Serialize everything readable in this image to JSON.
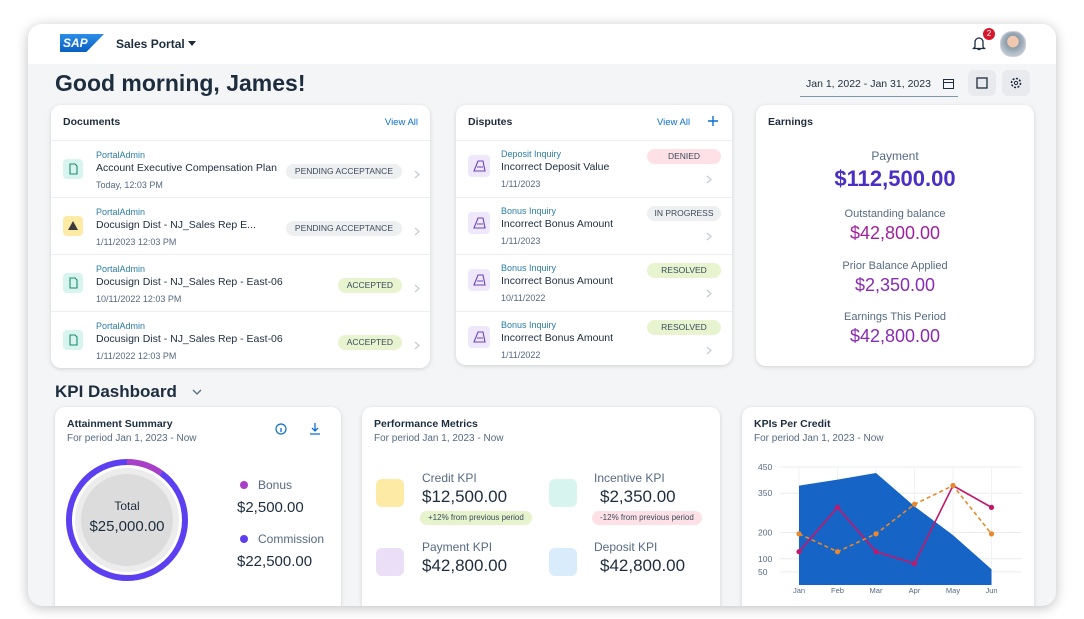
{
  "header": {
    "logo": "SAP",
    "app": "Sales Portal",
    "notifications": "2"
  },
  "greeting": "Good morning, James!",
  "date_range": "Jan 1, 2022 - Jan 31, 2023",
  "documents": {
    "title": "Documents",
    "view_all": "View All",
    "items": [
      {
        "author": "PortalAdmin",
        "title": "Account Executive Compensation Plan",
        "date": "Today, 12:03 PM",
        "status": "PENDING ACCEPTANCE",
        "status_color": "#eeeff1"
      },
      {
        "author": "PortalAdmin",
        "title": "Docusign Dist - NJ_Sales Rep E...",
        "date": "1/11/2023 12:03 PM",
        "status": "PENDING ACCEPTANCE",
        "status_color": "#eeeff1"
      },
      {
        "author": "PortalAdmin",
        "title": "Docusign Dist - NJ_Sales Rep - East-06",
        "date": "10/11/2022 12:03 PM",
        "status": "ACCEPTED",
        "status_color": "#e7f4cf"
      },
      {
        "author": "PortalAdmin",
        "title": "Docusign Dist - NJ_Sales Rep - East-06",
        "date": "1/11/2022 12:03 PM",
        "status": "ACCEPTED",
        "status_color": "#e7f4cf"
      }
    ]
  },
  "disputes": {
    "title": "Disputes",
    "view_all": "View All",
    "items": [
      {
        "type": "Deposit Inquiry",
        "title": "Incorrect Deposit Value",
        "date": "1/11/2023",
        "status": "DENIED",
        "status_color": "#fde1e7"
      },
      {
        "type": "Bonus Inquiry",
        "title": "Incorrect Bonus Amount",
        "date": "1/11/2023",
        "status": "IN PROGRESS",
        "status_color": "#eeeff1"
      },
      {
        "type": "Bonus Inquiry",
        "title": "Incorrect Bonus Amount",
        "date": "10/11/2022",
        "status": "RESOLVED",
        "status_color": "#e7f4cf"
      },
      {
        "type": "Bonus Inquiry",
        "title": "Incorrect Bonus Amount",
        "date": "1/11/2022",
        "status": "RESOLVED",
        "status_color": "#e7f4cf"
      }
    ]
  },
  "earnings": {
    "title": "Earnings",
    "items": [
      {
        "label": "Payment",
        "value": "$112,500.00",
        "color": "#4a2fc4"
      },
      {
        "label": "Outstanding balance",
        "value": "$42,800.00",
        "color": "#a01f9f"
      },
      {
        "label": "Prior Balance Applied",
        "value": "$2,350.00",
        "color": "#8a2bb3"
      },
      {
        "label": "Earnings This Period",
        "value": "$42,800.00",
        "color": "#8a2bb3"
      }
    ]
  },
  "kpi_dashboard": {
    "title": "KPI Dashboard"
  },
  "performance": {
    "title": "Performance Metrics",
    "subtitle": "For period Jan 1, 2023 - Now",
    "items": [
      {
        "label": "Credit KPI",
        "value": "$12,500.00",
        "badge": "+12% from previous period",
        "badge_color": "#e6f3cd",
        "icon_color": "#fdeaa4"
      },
      {
        "label": "Incentive KPI",
        "value": "$2,350.00",
        "badge": "-12% from previous period",
        "badge_color": "#fde1e7",
        "icon_color": "#d8f4ee"
      },
      {
        "label": "Payment KPI",
        "value": "$42,800.00",
        "icon_color": "#ebdff7"
      },
      {
        "label": "Deposit KPI",
        "value": "$42,800.00",
        "icon_color": "#d9ecfb"
      }
    ]
  },
  "chart_data": [
    {
      "type": "donut",
      "title": "Attainment Summary",
      "subtitle": "For period Jan 1, 2023 - Now",
      "center_label": "Total",
      "center_value": "$25,000.00",
      "categories": [
        "Bonus",
        "Commission"
      ],
      "values": [
        2500,
        22500
      ],
      "value_labels": [
        "$2,500.00",
        "$22,500.00"
      ],
      "colors": [
        "#a83fc8",
        "#5b3ff0"
      ]
    },
    {
      "type": "line",
      "title": "KPIs Per Credit",
      "subtitle": "For period Jan 1, 2023 - Now",
      "categories": [
        "Jan",
        "Feb",
        "Mar",
        "Apr",
        "May",
        "Jun"
      ],
      "ylim": [
        0,
        450
      ],
      "yticks": [
        50,
        100,
        200,
        350,
        450
      ],
      "grid": true,
      "series": [
        {
          "color": "#0b5cc4",
          "fill": true,
          "values": [
            379,
            402,
            427,
            300,
            190,
            60
          ]
        },
        {
          "color": "#c2186b",
          "markers": true,
          "values": [
            127,
            296,
            127,
            82,
            379,
            296
          ]
        },
        {
          "color": "#e8892b",
          "markers": true,
          "dashed": true,
          "values": [
            195,
            127,
            195,
            308,
            379,
            195
          ]
        }
      ]
    }
  ]
}
